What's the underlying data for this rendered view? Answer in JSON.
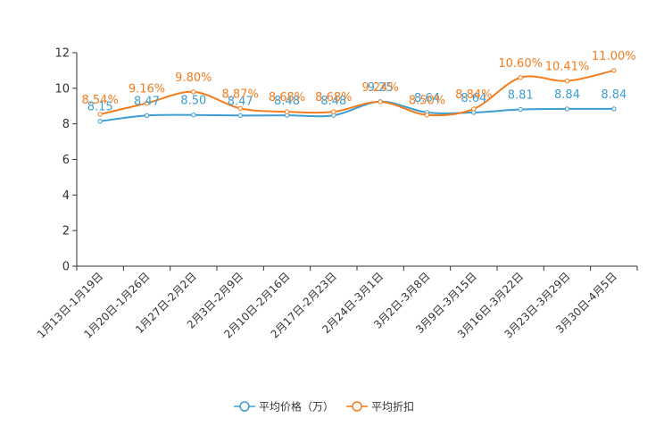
{
  "chart_data": {
    "type": "line",
    "title": "",
    "xlabel": "",
    "ylabel": "",
    "ylim": [
      0,
      12
    ],
    "yticks": [
      "0",
      "2",
      "4",
      "6",
      "8",
      "10",
      "12"
    ],
    "grid": false,
    "legend_position": "bottom",
    "categories": [
      "1月13日-1月19日",
      "1月20日-1月26日",
      "1月27日-2月2日",
      "2月3日-2月9日",
      "2月10日-2月16日",
      "2月17日-2月23日",
      "2月24日-3月1日",
      "3月2日-3月8日",
      "3月9日-3月15日",
      "3月16日-3月22日",
      "3月23日-3月29日",
      "3月30日-4月5日"
    ],
    "series": [
      {
        "name": "平均价格（万）",
        "color": "#3d9ed1",
        "values": [
          8.15,
          8.47,
          8.5,
          8.47,
          8.48,
          8.48,
          9.25,
          8.64,
          8.64,
          8.81,
          8.84,
          8.84
        ],
        "labels": [
          "8.15",
          "8.47",
          "8.50",
          "8.47",
          "8.48",
          "8.48",
          "9.25",
          "8.64",
          "8.64",
          "8.81",
          "8.84",
          "8.84"
        ]
      },
      {
        "name": "平均折扣",
        "color": "#f47c1d",
        "values": [
          8.54,
          9.16,
          9.8,
          8.87,
          8.68,
          8.68,
          9.24,
          8.5,
          8.84,
          10.6,
          10.41,
          11.0
        ],
        "labels": [
          "8.54%",
          "9.16%",
          "9.80%",
          "8.87%",
          "8.68%",
          "8.68%",
          "9.24%",
          "8.50%",
          "8.84%",
          "10.60%",
          "10.41%",
          "11.00%"
        ]
      }
    ]
  }
}
